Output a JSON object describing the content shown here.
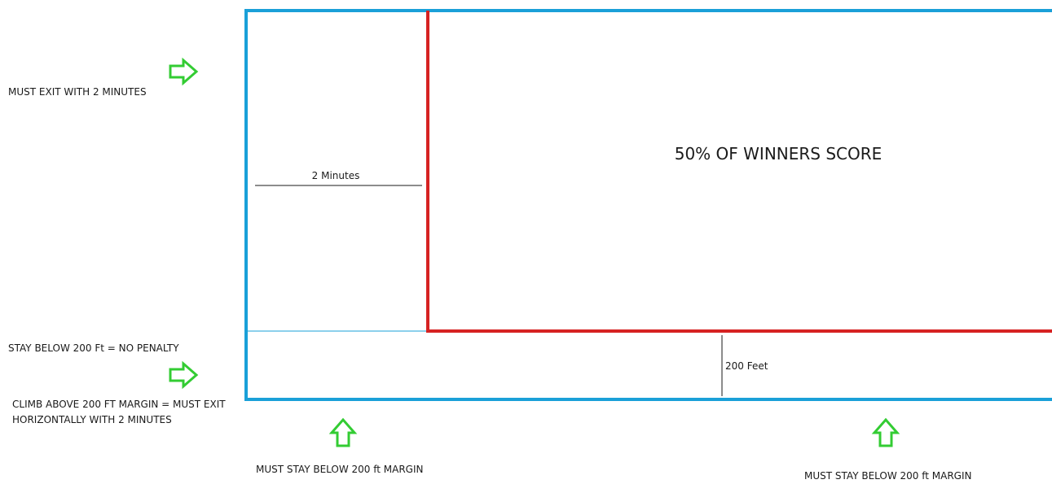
{
  "colors": {
    "outer_border": "#1aa0d8",
    "inner_border": "#d62222",
    "arrow_fill": "#ffffff",
    "arrow_stroke": "#33cc33",
    "line": "#1a1a1a",
    "text": "#1a1a1a"
  },
  "zones": {
    "scored_zone_label": "50% OF WINNERS SCORE",
    "time_marker_label": "2 Minutes",
    "height_marker_label": "200 Feet"
  },
  "notes": {
    "exit_two_minutes": "MUST EXIT WITH 2 MINUTES",
    "stay_below": "STAY BELOW 200 Ft = NO PENALTY",
    "climb_above": "CLIMB ABOVE 200 FT MARGIN = MUST EXIT HORIZONTALLY WITH 2 MINUTES",
    "bottom_left": "MUST STAY BELOW 200 ft MARGIN",
    "bottom_right": "MUST STAY BELOW 200 ft MARGIN"
  },
  "icons": {
    "right_arrows": "arrow-right-icon",
    "up_arrows": "arrow-up-icon"
  }
}
